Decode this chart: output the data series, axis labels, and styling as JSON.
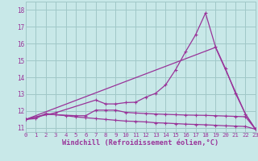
{
  "background_color": "#c8e8e8",
  "grid_color": "#a0c8c8",
  "line_color": "#993399",
  "xlabel": "Windchill (Refroidissement éolien,°C)",
  "xlabel_color": "#993399",
  "tick_color": "#993399",
  "ylim": [
    10.75,
    18.5
  ],
  "xlim": [
    0,
    23
  ],
  "yticks": [
    11,
    12,
    13,
    14,
    15,
    16,
    17,
    18
  ],
  "xticks": [
    0,
    1,
    2,
    3,
    4,
    5,
    6,
    7,
    8,
    9,
    10,
    11,
    12,
    13,
    14,
    15,
    16,
    17,
    18,
    19,
    20,
    21,
    22,
    23
  ],
  "line1_x": [
    0,
    1,
    2,
    3,
    4,
    5,
    6,
    7,
    8,
    9,
    10,
    11,
    12,
    13,
    14,
    15,
    16,
    17,
    18,
    19,
    20,
    21,
    22,
    23
  ],
  "line1_y": [
    11.5,
    11.55,
    11.85,
    11.78,
    11.72,
    11.65,
    11.6,
    11.55,
    11.5,
    11.45,
    11.4,
    11.38,
    11.35,
    11.3,
    11.28,
    11.25,
    11.22,
    11.2,
    11.18,
    11.15,
    11.12,
    11.1,
    11.08,
    10.92
  ],
  "line2_x": [
    0,
    2,
    3,
    5,
    6,
    7,
    8,
    9,
    10,
    11,
    12,
    13,
    14,
    15,
    16,
    17,
    18,
    19,
    20,
    21,
    22,
    23
  ],
  "line2_y": [
    11.5,
    11.8,
    11.78,
    11.72,
    11.72,
    12.05,
    12.05,
    12.05,
    11.92,
    11.88,
    11.85,
    11.82,
    11.8,
    11.78,
    11.76,
    11.75,
    11.74,
    11.72,
    11.7,
    11.68,
    11.66,
    10.92
  ],
  "line3_x": [
    0,
    3,
    7,
    8,
    9,
    10,
    11,
    12,
    13,
    14,
    15,
    16,
    17,
    18,
    19,
    20,
    21,
    22,
    23
  ],
  "line3_y": [
    11.5,
    11.9,
    12.65,
    12.42,
    12.42,
    12.5,
    12.52,
    12.82,
    13.05,
    13.55,
    14.45,
    15.52,
    16.52,
    17.82,
    15.82,
    14.52,
    13.05,
    11.82,
    10.92
  ],
  "line4_x": [
    0,
    19,
    22,
    23
  ],
  "line4_y": [
    11.5,
    15.78,
    11.82,
    10.92
  ]
}
